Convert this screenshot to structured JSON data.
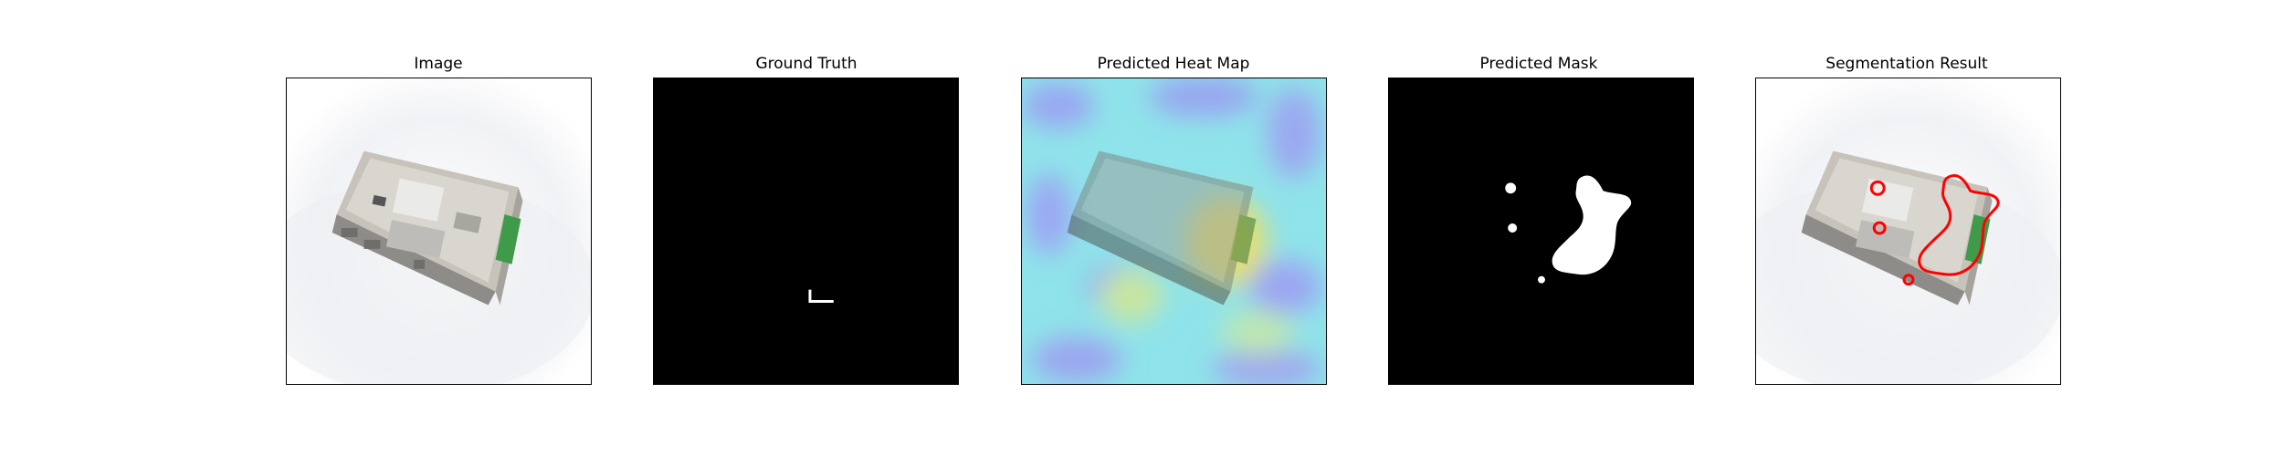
{
  "figure": {
    "panels": [
      {
        "title": "Image"
      },
      {
        "title": "Ground Truth"
      },
      {
        "title": "Predicted Heat Map"
      },
      {
        "title": "Predicted Mask"
      },
      {
        "title": "Segmentation Result"
      }
    ]
  },
  "colors": {
    "background": "#ffffff",
    "mask_background": "#000000",
    "mask_foreground": "#ffffff",
    "contour": "#ff0000",
    "heatmap_low": "#8f9bf0",
    "heatmap_mid": "#8fe3ea",
    "heatmap_high": "#e6df6a"
  },
  "icons": [
    "device-photo",
    "ground-truth-mask",
    "heatmap-overlay",
    "binary-mask",
    "red-contour-overlay"
  ]
}
